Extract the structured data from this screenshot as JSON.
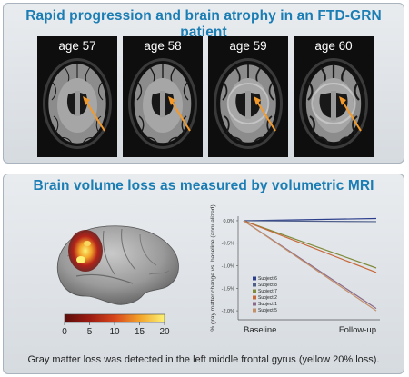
{
  "top_panel": {
    "title": "Rapid progression and brain atrophy in an FTD-GRN patient",
    "scans": [
      {
        "label": "age 57",
        "atrophy": 0.15
      },
      {
        "label": "age 58",
        "atrophy": 0.35
      },
      {
        "label": "age 59",
        "atrophy": 0.6
      },
      {
        "label": "age 60",
        "atrophy": 0.9
      }
    ]
  },
  "bottom_panel": {
    "title": "Brain volume loss as measured by volumetric MRI",
    "colorbar": {
      "ticks": [
        "0",
        "5",
        "10",
        "15",
        "20"
      ],
      "colors": [
        "#5c0d0a",
        "#9b1b12",
        "#d7461c",
        "#f2a229",
        "#fbf276"
      ]
    },
    "caption": "Gray matter loss was detected in the left middle frontal gyrus (yellow 20% loss)."
  },
  "colors": {
    "title_blue": "#1a7db4",
    "arrow_orange": "#f39a2a"
  },
  "chart_data": {
    "type": "line",
    "categories": [
      "Baseline",
      "Follow-up"
    ],
    "ylabel": "% gray matter change vs. baseline (annualized)",
    "yticks": [
      "0.0%",
      "-0.5%",
      "-1.0%",
      "-1.5%",
      "-2.0%"
    ],
    "ylim": [
      -2.2,
      0.1
    ],
    "legend_position": "lower-left",
    "series": [
      {
        "name": "Subject 6",
        "values": [
          0.0,
          0.05
        ],
        "color": "#2c3e8c"
      },
      {
        "name": "Subject 8",
        "values": [
          0.0,
          -0.02
        ],
        "color": "#4f5f8a"
      },
      {
        "name": "Subject 7",
        "values": [
          0.0,
          -1.05
        ],
        "color": "#7e8a3a"
      },
      {
        "name": "Subject 2",
        "values": [
          0.0,
          -1.15
        ],
        "color": "#c8683a"
      },
      {
        "name": "Subject 1",
        "values": [
          0.0,
          -1.95
        ],
        "color": "#8a6a8a"
      },
      {
        "name": "Subject 5",
        "values": [
          0.0,
          -2.0
        ],
        "color": "#c4906a"
      }
    ]
  }
}
